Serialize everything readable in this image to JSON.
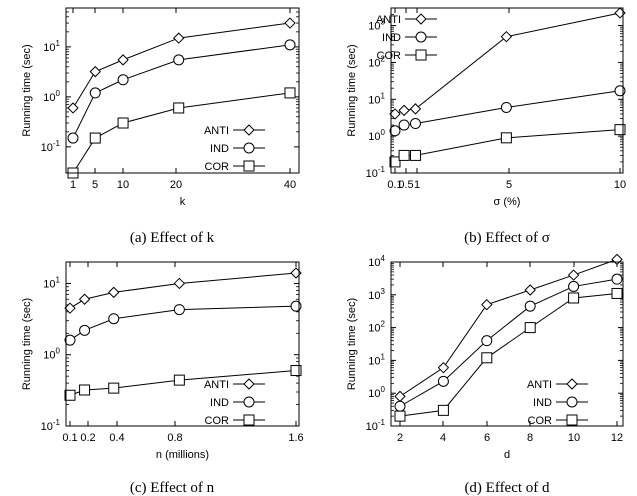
{
  "chart_data": [
    {
      "type": "line",
      "caption": "(a) Effect of k",
      "xlabel": "k",
      "ylabel": "Running time (sec)",
      "yscale": "log",
      "ylim": [
        0.03,
        60
      ],
      "xlim": [
        0,
        42
      ],
      "xticks": [
        "1",
        "5",
        "10",
        "20",
        "40"
      ],
      "yticks": [
        "10^-1",
        "10^0",
        "10^1"
      ],
      "legend": "bottom-right",
      "x": [
        1,
        5,
        10,
        20,
        40
      ],
      "series": [
        {
          "name": "ANTI",
          "marker": "diamond",
          "values": [
            0.6,
            3.2,
            5.5,
            15,
            30
          ]
        },
        {
          "name": "IND",
          "marker": "circle",
          "values": [
            0.15,
            1.2,
            2.2,
            5.5,
            11
          ]
        },
        {
          "name": "COR",
          "marker": "square",
          "values": [
            0.03,
            0.15,
            0.3,
            0.6,
            1.2
          ]
        }
      ]
    },
    {
      "type": "line",
      "caption": "(b) Effect of σ",
      "xlabel": "σ (%)",
      "ylabel": "Running time (sec)",
      "yscale": "log",
      "ylim": [
        0.1,
        3000
      ],
      "xlim": [
        0,
        10
      ],
      "xticks": [
        "0.1",
        "0.5",
        "1",
        "5",
        "10"
      ],
      "yticks": [
        "10^-1",
        "10^0",
        "10^1",
        "10^2",
        "10^3"
      ],
      "legend": "top-left",
      "x": [
        0.1,
        0.5,
        1,
        5,
        10
      ],
      "series": [
        {
          "name": "ANTI",
          "marker": "diamond",
          "values": [
            4,
            5,
            5.5,
            500,
            2200
          ]
        },
        {
          "name": "IND",
          "marker": "circle",
          "values": [
            1.4,
            2,
            2.2,
            6,
            17
          ]
        },
        {
          "name": "COR",
          "marker": "square",
          "values": [
            0.2,
            0.3,
            0.3,
            0.9,
            1.5
          ]
        }
      ]
    },
    {
      "type": "line",
      "caption": "(c) Effect of n",
      "xlabel": "n (millions)",
      "ylabel": "Running time (sec)",
      "yscale": "log",
      "ylim": [
        0.1,
        20
      ],
      "xlim": [
        0,
        1.6
      ],
      "xticks": [
        "0.1",
        "0.2",
        "0.4",
        "0.8",
        "1.6"
      ],
      "yticks": [
        "10^-1",
        "10^0",
        "10^1"
      ],
      "legend": "bottom-right",
      "x": [
        0.05,
        0.15,
        0.35,
        0.8,
        1.6
      ],
      "series": [
        {
          "name": "ANTI",
          "marker": "diamond",
          "values": [
            4.5,
            6,
            7.5,
            10,
            14
          ]
        },
        {
          "name": "IND",
          "marker": "circle",
          "values": [
            1.6,
            2.2,
            3.2,
            4.3,
            4.8
          ]
        },
        {
          "name": "COR",
          "marker": "square",
          "values": [
            0.27,
            0.32,
            0.34,
            0.44,
            0.6
          ]
        }
      ]
    },
    {
      "type": "line",
      "caption": "(d) Effect of d",
      "xlabel": "d",
      "ylabel": "Running time (sec)",
      "yscale": "log",
      "ylim": [
        0.1,
        10000
      ],
      "xlim": [
        1.5,
        12.5
      ],
      "xticks": [
        "2",
        "4",
        "6",
        "8",
        "10",
        "12"
      ],
      "yticks": [
        "10^-1",
        "10^0",
        "10^1",
        "10^2",
        "10^3",
        "10^4"
      ],
      "legend": "bottom-right",
      "x": [
        2,
        4,
        6,
        8,
        10,
        12
      ],
      "series": [
        {
          "name": "ANTI",
          "marker": "diamond",
          "values": [
            0.8,
            6,
            500,
            1400,
            4000,
            12000
          ]
        },
        {
          "name": "IND",
          "marker": "circle",
          "values": [
            0.4,
            2.3,
            40,
            450,
            1800,
            3000
          ]
        },
        {
          "name": "COR",
          "marker": "square",
          "values": [
            0.2,
            0.3,
            12,
            100,
            800,
            1100
          ]
        }
      ]
    }
  ]
}
